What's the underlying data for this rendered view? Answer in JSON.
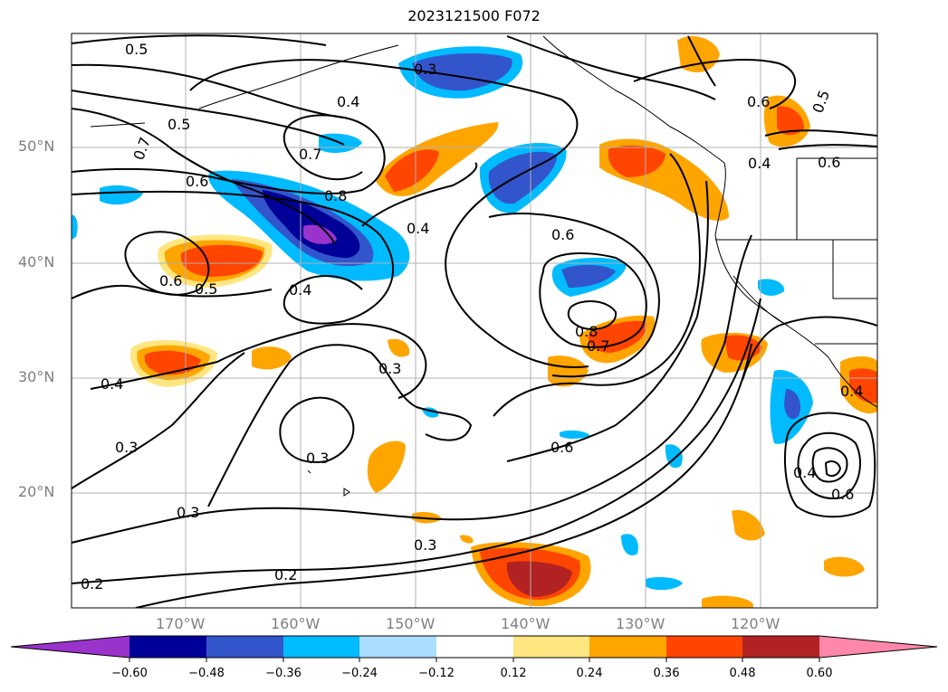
{
  "title": "2023121500 F072",
  "lat_labels": [
    "50°N",
    "40°N",
    "30°N",
    "20°N"
  ],
  "lon_labels": [
    "170°W",
    "160°W",
    "150°W",
    "140°W",
    "130°W",
    "120°W"
  ],
  "contour_labels": [
    "0.5",
    "0.5",
    "0.7",
    "0.6",
    "0.5",
    "0.4",
    "0.6",
    "0.4",
    "0.3",
    "0.4",
    "0.7",
    "0.8",
    "0.4",
    "0.6",
    "0.6",
    "0.5",
    "0.6",
    "0.8",
    "0.7",
    "0.3",
    "0.3",
    "0.3",
    "0.6",
    "0.3",
    "0.2",
    "0.2",
    "0.3",
    "0.4",
    "0.6",
    "0.4",
    "0.4"
  ],
  "colorbar": {
    "colors": [
      "#9933cc",
      "#000099",
      "#3355cc",
      "#00bbff",
      "#aaddff",
      "#ffffff",
      "#ffe680",
      "#ffa500",
      "#ff4500",
      "#b22222",
      "#ff88aa"
    ],
    "tick_labels": [
      "−0.60",
      "−0.48",
      "−0.36",
      "−0.24",
      "−0.12",
      "0.12",
      "0.24",
      "0.36",
      "0.48",
      "0.60"
    ]
  },
  "map": {
    "land_color": "#ffffff",
    "grid_color": "#b0b0b0",
    "contour_color": "#000000"
  }
}
